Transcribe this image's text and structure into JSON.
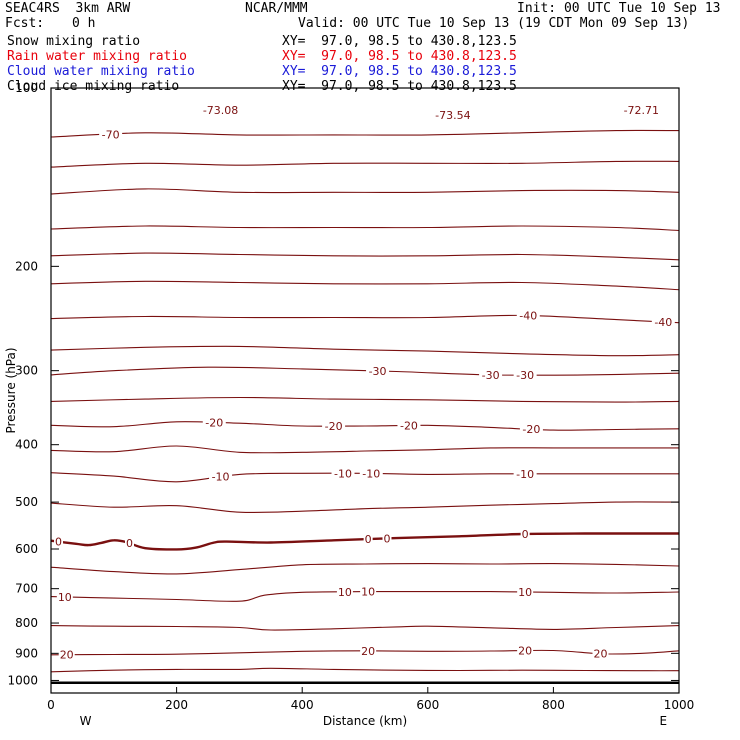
{
  "header": {
    "model": "SEAC4RS  3km ARW",
    "org": "NCAR/MMM",
    "init": "Init: 00 UTC Tue 10 Sep 13",
    "fcst_label": "Fcst:",
    "fcst_value": "0 h",
    "valid": "Valid: 00 UTC Tue 10 Sep 13 (19 CDT Mon 09 Sep 13)"
  },
  "fields": [
    {
      "name": "Snow mixing ratio",
      "xy": "XY=  97.0, 98.5 to 430.8,123.5",
      "color": "#000000"
    },
    {
      "name": "Rain water mixing ratio",
      "xy": "XY=  97.0, 98.5 to 430.8,123.5",
      "color": "#e8000b"
    },
    {
      "name": "Cloud water mixing ratio",
      "xy": "XY=  97.0, 98.5 to 430.8,123.5",
      "color": "#1a1ad8"
    },
    {
      "name": "Cloud ice mixing ratio",
      "xy": "XY=  97.0, 98.5 to 430.8,123.5",
      "color": "#000000"
    }
  ],
  "colors": {
    "contour": "#7a1010",
    "axis": "#000000",
    "background": "#ffffff"
  },
  "chart_data": {
    "type": "line",
    "title": "",
    "xlabel": "Distance (km)",
    "ylabel": "Pressure (hPa)",
    "xlim": [
      0,
      1000
    ],
    "ylim": [
      1050,
      100
    ],
    "yscale": "log",
    "xticks": [
      0,
      200,
      400,
      600,
      800,
      1000
    ],
    "yticks": [
      100,
      200,
      300,
      400,
      500,
      600,
      700,
      800,
      900,
      1000
    ],
    "ytick_labels": [
      "100",
      "200",
      "300",
      "400",
      "500",
      "600",
      "700",
      "800",
      "900",
      "1000"
    ],
    "x_end_labels": {
      "left": "W",
      "right": "E"
    },
    "grid": false,
    "field": "Temperature contours (°C), interval 5",
    "extrema_labels": [
      {
        "text": "-73.08",
        "x": 270,
        "p": 109
      },
      {
        "text": "-73.54",
        "x": 640,
        "p": 111
      },
      {
        "text": "-72.71",
        "x": 940,
        "p": 109
      }
    ],
    "contours": [
      {
        "level": -70,
        "bold": false,
        "x": [
          0,
          150,
          300,
          450,
          600,
          750,
          900,
          1000
        ],
        "p": [
          121,
          119,
          120,
          120,
          120,
          119,
          118,
          118
        ],
        "labels": [
          {
            "x": 95,
            "text": "-70"
          }
        ]
      },
      {
        "level": -65,
        "bold": false,
        "x": [
          0,
          150,
          300,
          450,
          600,
          750,
          900,
          1000
        ],
        "p": [
          136,
          134,
          135,
          134,
          134,
          134,
          133,
          133
        ],
        "labels": []
      },
      {
        "level": -60,
        "bold": false,
        "x": [
          0,
          150,
          300,
          450,
          600,
          750,
          900,
          1000
        ],
        "p": [
          151,
          148,
          150,
          150,
          150,
          149,
          149,
          150
        ],
        "labels": []
      },
      {
        "level": -55,
        "bold": false,
        "x": [
          0,
          150,
          300,
          450,
          600,
          750,
          900,
          1000
        ],
        "p": [
          173,
          171,
          172,
          172,
          172,
          171,
          172,
          174
        ],
        "labels": []
      },
      {
        "level": -50,
        "bold": false,
        "x": [
          0,
          150,
          300,
          450,
          600,
          750,
          900,
          1000
        ],
        "p": [
          192,
          190,
          191,
          192,
          192,
          191,
          193,
          195
        ],
        "labels": []
      },
      {
        "level": -45,
        "bold": false,
        "x": [
          0,
          150,
          300,
          450,
          600,
          750,
          900,
          1000
        ],
        "p": [
          214,
          212,
          213,
          214,
          214,
          213,
          216,
          219
        ],
        "labels": []
      },
      {
        "level": -40,
        "bold": false,
        "x": [
          0,
          150,
          300,
          450,
          600,
          750,
          900,
          1000
        ],
        "p": [
          245,
          243,
          244,
          244,
          244,
          242,
          246,
          249
        ],
        "labels": [
          {
            "x": 760,
            "text": "-40"
          },
          {
            "x": 975,
            "text": "-40"
          }
        ]
      },
      {
        "level": -35,
        "bold": false,
        "x": [
          0,
          150,
          300,
          450,
          600,
          750,
          900,
          1000
        ],
        "p": [
          277,
          274,
          273,
          276,
          278,
          281,
          283,
          282
        ],
        "labels": []
      },
      {
        "level": -30,
        "bold": false,
        "x": [
          0,
          100,
          250,
          400,
          550,
          700,
          850,
          1000
        ],
        "p": [
          305,
          300,
          296,
          298,
          301,
          305,
          305,
          303
        ],
        "labels": [
          {
            "x": 520,
            "text": "-30"
          },
          {
            "x": 700,
            "text": "-30"
          },
          {
            "x": 755,
            "text": "-30"
          }
        ]
      },
      {
        "level": -25,
        "bold": false,
        "x": [
          0,
          150,
          300,
          450,
          600,
          750,
          900,
          1000
        ],
        "p": [
          338,
          335,
          333,
          335,
          336,
          338,
          339,
          338
        ],
        "labels": []
      },
      {
        "level": -20,
        "bold": false,
        "x": [
          0,
          100,
          200,
          300,
          400,
          500,
          600,
          700,
          800,
          900,
          1000
        ],
        "p": [
          371,
          373,
          366,
          368,
          372,
          372,
          371,
          374,
          378,
          377,
          376
        ],
        "labels": [
          {
            "x": 260,
            "text": "-20"
          },
          {
            "x": 450,
            "text": "-20"
          },
          {
            "x": 570,
            "text": "-20"
          },
          {
            "x": 765,
            "text": "-20"
          }
        ]
      },
      {
        "level": -15,
        "bold": false,
        "x": [
          0,
          100,
          200,
          300,
          400,
          500,
          600,
          700,
          800,
          900,
          1000
        ],
        "p": [
          409,
          411,
          402,
          412,
          412,
          410,
          408,
          405,
          405,
          405,
          405
        ],
        "labels": []
      },
      {
        "level": -10,
        "bold": false,
        "x": [
          0,
          100,
          200,
          300,
          400,
          500,
          600,
          700,
          800,
          900,
          1000
        ],
        "p": [
          446,
          452,
          462,
          449,
          447,
          447,
          449,
          448,
          448,
          448,
          448
        ],
        "labels": [
          {
            "x": 270,
            "text": "-10"
          },
          {
            "x": 465,
            "text": "-10"
          },
          {
            "x": 510,
            "text": "-10"
          },
          {
            "x": 755,
            "text": "-10"
          }
        ]
      },
      {
        "level": -5,
        "bold": false,
        "x": [
          0,
          100,
          200,
          300,
          400,
          500,
          600,
          700,
          800,
          900,
          1000
        ],
        "p": [
          502,
          510,
          507,
          520,
          518,
          513,
          510,
          506,
          503,
          500,
          500
        ],
        "labels": []
      },
      {
        "level": 0,
        "bold": true,
        "x": [
          0,
          40,
          60,
          80,
          100,
          120,
          150,
          200,
          230,
          260,
          280,
          350,
          450,
          550,
          650,
          750,
          850,
          1000
        ],
        "p": [
          581,
          588,
          591,
          586,
          580,
          584,
          598,
          601,
          597,
          585,
          583,
          585,
          580,
          575,
          571,
          566,
          565,
          565
        ],
        "labels": [
          {
            "x": 12,
            "text": "0"
          },
          {
            "x": 125,
            "text": "0"
          },
          {
            "x": 505,
            "text": "0"
          },
          {
            "x": 535,
            "text": "0"
          },
          {
            "x": 755,
            "text": "0"
          }
        ]
      },
      {
        "level": 5,
        "bold": false,
        "x": [
          0,
          100,
          200,
          300,
          400,
          500,
          600,
          700,
          800,
          900,
          1000
        ],
        "p": [
          644,
          655,
          661,
          650,
          638,
          636,
          635,
          636,
          635,
          637,
          641
        ],
        "labels": []
      },
      {
        "level": 10,
        "bold": false,
        "x": [
          0,
          100,
          200,
          300,
          340,
          400,
          500,
          600,
          700,
          800,
          900,
          1000
        ],
        "p": [
          722,
          726,
          730,
          735,
          718,
          710,
          708,
          708,
          708,
          710,
          712,
          709
        ],
        "labels": [
          {
            "x": 22,
            "text": "10"
          },
          {
            "x": 468,
            "text": "10"
          },
          {
            "x": 505,
            "text": "10"
          },
          {
            "x": 755,
            "text": "10"
          }
        ]
      },
      {
        "level": 15,
        "bold": false,
        "x": [
          0,
          100,
          200,
          300,
          350,
          450,
          550,
          600,
          700,
          800,
          900,
          1000
        ],
        "p": [
          808,
          810,
          811,
          814,
          822,
          818,
          812,
          810,
          815,
          820,
          814,
          808
        ],
        "labels": []
      },
      {
        "level": 20,
        "bold": false,
        "x": [
          0,
          100,
          200,
          300,
          400,
          500,
          600,
          700,
          800,
          880,
          950,
          1000
        ],
        "p": [
          905,
          904,
          903,
          898,
          893,
          891,
          893,
          892,
          890,
          902,
          899,
          891
        ],
        "labels": [
          {
            "x": 25,
            "text": "20"
          },
          {
            "x": 505,
            "text": "20"
          },
          {
            "x": 755,
            "text": "20"
          },
          {
            "x": 875,
            "text": "20"
          }
        ]
      },
      {
        "level": 25,
        "bold": false,
        "x": [
          0,
          100,
          200,
          300,
          350,
          450,
          550,
          650,
          750,
          850,
          950,
          1000
        ],
        "p": [
          967,
          961,
          958,
          958,
          954,
          958,
          961,
          962,
          961,
          962,
          963,
          963
        ],
        "labels": []
      }
    ],
    "surface": {
      "x": [
        0,
        1000
      ],
      "p": [
        1009,
        1009
      ]
    }
  }
}
